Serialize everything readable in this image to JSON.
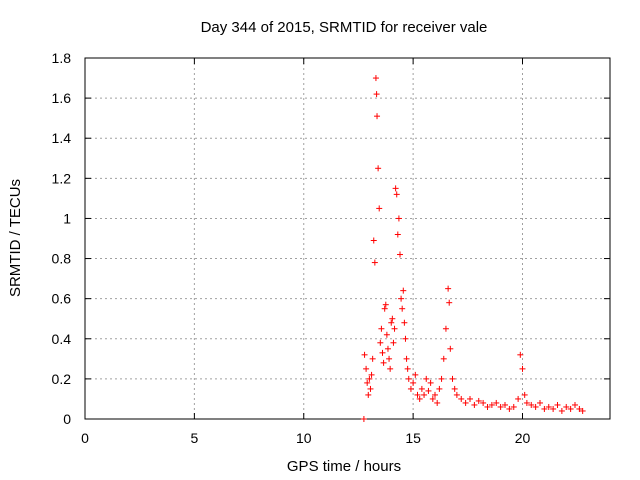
{
  "chart_data": {
    "type": "scatter",
    "title": "Day 344 of 2015, SRMTID for receiver vale",
    "xlabel": "GPS time / hours",
    "ylabel": "SRMTID / TECUs",
    "xlim": [
      0,
      24
    ],
    "ylim": [
      0,
      1.8
    ],
    "xticks": [
      0,
      5,
      10,
      15,
      20
    ],
    "xtick_labels": [
      "0",
      "5",
      "10",
      "15",
      "20"
    ],
    "yticks": [
      0,
      0.2,
      0.4,
      0.6,
      0.8,
      1.0,
      1.2,
      1.4,
      1.6,
      1.8
    ],
    "ytick_labels": [
      "0",
      "0.2",
      "0.4",
      "0.6",
      "0.8",
      "1",
      "1.2",
      "1.4",
      "1.6",
      "1.8"
    ],
    "grid": true,
    "marker": "plus",
    "color": "#ff0000",
    "series": [
      {
        "name": "SRMTID",
        "x": [
          12.75,
          12.78,
          12.85,
          12.9,
          12.95,
          13.0,
          13.05,
          13.1,
          13.15,
          13.2,
          13.25,
          13.3,
          13.33,
          13.35,
          13.4,
          13.45,
          13.5,
          13.55,
          13.6,
          13.65,
          13.7,
          13.75,
          13.8,
          13.85,
          13.9,
          13.95,
          14.0,
          14.05,
          14.1,
          14.15,
          14.2,
          14.25,
          14.3,
          14.35,
          14.4,
          14.45,
          14.5,
          14.55,
          14.6,
          14.65,
          14.7,
          14.75,
          14.8,
          14.9,
          15.0,
          15.1,
          15.2,
          15.3,
          15.4,
          15.5,
          15.6,
          15.7,
          15.8,
          15.9,
          16.0,
          16.1,
          16.2,
          16.3,
          16.4,
          16.5,
          16.6,
          16.65,
          16.7,
          16.8,
          16.9,
          17.0,
          17.2,
          17.4,
          17.6,
          17.8,
          18.0,
          18.2,
          18.4,
          18.6,
          18.8,
          19.0,
          19.2,
          19.4,
          19.6,
          19.8,
          19.9,
          20.0,
          20.1,
          20.2,
          20.4,
          20.6,
          20.8,
          21.0,
          21.2,
          21.4,
          21.6,
          21.8,
          22.0,
          22.2,
          22.4,
          22.6,
          22.75
        ],
        "y": [
          0.0,
          0.32,
          0.25,
          0.18,
          0.12,
          0.2,
          0.15,
          0.22,
          0.3,
          0.89,
          0.78,
          1.7,
          1.62,
          1.51,
          1.25,
          1.05,
          0.38,
          0.45,
          0.33,
          0.28,
          0.55,
          0.57,
          0.42,
          0.35,
          0.3,
          0.25,
          0.48,
          0.5,
          0.38,
          0.45,
          1.15,
          1.12,
          0.92,
          1.0,
          0.82,
          0.6,
          0.55,
          0.64,
          0.48,
          0.4,
          0.3,
          0.25,
          0.2,
          0.15,
          0.18,
          0.22,
          0.12,
          0.1,
          0.15,
          0.12,
          0.2,
          0.14,
          0.18,
          0.1,
          0.12,
          0.08,
          0.15,
          0.2,
          0.3,
          0.45,
          0.65,
          0.58,
          0.35,
          0.2,
          0.15,
          0.12,
          0.1,
          0.08,
          0.1,
          0.07,
          0.09,
          0.08,
          0.06,
          0.07,
          0.08,
          0.06,
          0.07,
          0.05,
          0.06,
          0.1,
          0.32,
          0.25,
          0.12,
          0.08,
          0.07,
          0.06,
          0.08,
          0.05,
          0.06,
          0.05,
          0.07,
          0.04,
          0.06,
          0.05,
          0.07,
          0.05,
          0.04
        ]
      }
    ]
  }
}
